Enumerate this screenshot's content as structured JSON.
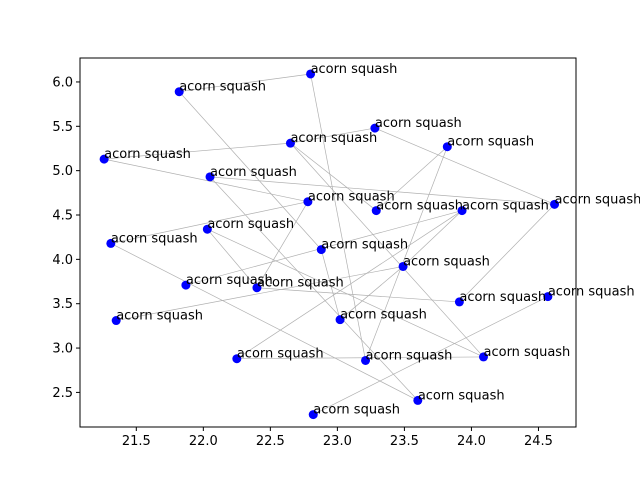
{
  "chart_data": {
    "type": "scatter",
    "title": "",
    "xlabel": "",
    "ylabel": "",
    "xlim": [
      21.08,
      24.78
    ],
    "ylim": [
      2.11,
      6.27
    ],
    "xticks": [
      21.5,
      22.0,
      22.5,
      23.0,
      23.5,
      24.0,
      24.5
    ],
    "yticks": [
      2.5,
      3.0,
      3.5,
      4.0,
      4.5,
      5.0,
      5.5,
      6.0
    ],
    "xtick_labels": [
      "21.5",
      "22.0",
      "22.5",
      "23.0",
      "23.5",
      "24.0",
      "24.5"
    ],
    "ytick_labels": [
      "2.5",
      "3.0",
      "3.5",
      "4.0",
      "4.5",
      "5.0",
      "5.5",
      "6.0"
    ],
    "grid": false,
    "point_color": "#0000ff",
    "line_color": "#b0b0b0",
    "points": [
      {
        "x": 22.8,
        "y": 6.09,
        "label": "acorn squash"
      },
      {
        "x": 21.82,
        "y": 5.89,
        "label": "acorn squash"
      },
      {
        "x": 23.28,
        "y": 5.48,
        "label": "acorn squash"
      },
      {
        "x": 22.65,
        "y": 5.31,
        "label": "acorn squash"
      },
      {
        "x": 23.82,
        "y": 5.27,
        "label": "acorn squash"
      },
      {
        "x": 21.26,
        "y": 5.13,
        "label": "acorn squash"
      },
      {
        "x": 22.05,
        "y": 4.93,
        "label": "acorn squash"
      },
      {
        "x": 24.62,
        "y": 4.62,
        "label": "acorn squash"
      },
      {
        "x": 22.78,
        "y": 4.65,
        "label": "acorn squash"
      },
      {
        "x": 23.29,
        "y": 4.55,
        "label": "acorn squash"
      },
      {
        "x": 23.93,
        "y": 4.55,
        "label": "acorn squash"
      },
      {
        "x": 22.03,
        "y": 4.34,
        "label": "acorn squash"
      },
      {
        "x": 21.31,
        "y": 4.18,
        "label": "acorn squash"
      },
      {
        "x": 22.88,
        "y": 4.11,
        "label": "acorn squash"
      },
      {
        "x": 23.49,
        "y": 3.92,
        "label": "acorn squash"
      },
      {
        "x": 21.87,
        "y": 3.71,
        "label": "acorn squash"
      },
      {
        "x": 22.4,
        "y": 3.68,
        "label": "acorn squash"
      },
      {
        "x": 24.57,
        "y": 3.58,
        "label": "acorn squash"
      },
      {
        "x": 23.91,
        "y": 3.52,
        "label": "acorn squash"
      },
      {
        "x": 21.35,
        "y": 3.31,
        "label": "acorn squash"
      },
      {
        "x": 23.02,
        "y": 3.32,
        "label": "acorn squash"
      },
      {
        "x": 24.09,
        "y": 2.9,
        "label": "acorn squash"
      },
      {
        "x": 22.25,
        "y": 2.88,
        "label": "acorn squash"
      },
      {
        "x": 23.21,
        "y": 2.86,
        "label": "acorn squash"
      },
      {
        "x": 23.6,
        "y": 2.41,
        "label": "acorn squash"
      },
      {
        "x": 22.82,
        "y": 2.25,
        "label": "acorn squash"
      }
    ],
    "connections": [
      [
        0,
        1
      ],
      [
        0,
        23
      ],
      [
        1,
        13
      ],
      [
        2,
        3
      ],
      [
        2,
        7
      ],
      [
        3,
        5
      ],
      [
        3,
        9
      ],
      [
        3,
        21
      ],
      [
        4,
        9
      ],
      [
        4,
        23
      ],
      [
        5,
        8
      ],
      [
        6,
        7
      ],
      [
        6,
        24
      ],
      [
        7,
        18
      ],
      [
        8,
        12
      ],
      [
        8,
        16
      ],
      [
        10,
        14
      ],
      [
        10,
        15
      ],
      [
        11,
        16
      ],
      [
        11,
        21
      ],
      [
        12,
        24
      ],
      [
        14,
        19
      ],
      [
        10,
        22
      ],
      [
        17,
        25
      ],
      [
        22,
        21
      ],
      [
        14,
        20
      ],
      [
        13,
        20
      ],
      [
        16,
        18
      ]
    ]
  }
}
